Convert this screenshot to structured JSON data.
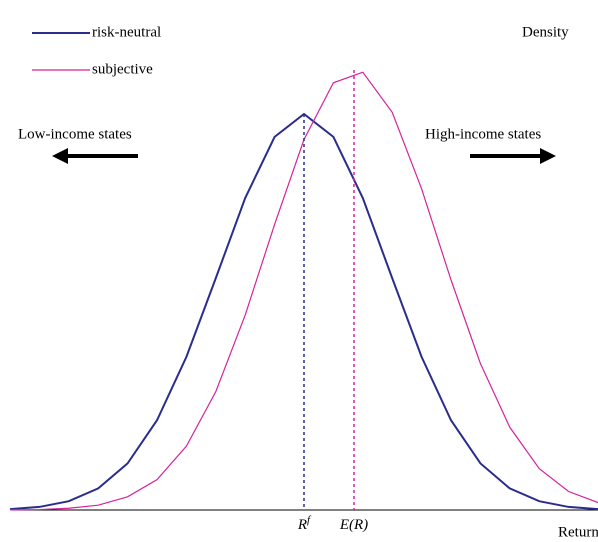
{
  "chart_data": {
    "type": "line",
    "y_label": "Density",
    "x_label": "Return",
    "annotations": [
      "Low-income states",
      "High-income states"
    ],
    "x": [
      0,
      5,
      10,
      15,
      20,
      25,
      30,
      35,
      40,
      45,
      50,
      55,
      60,
      65,
      70,
      75,
      80,
      85,
      90,
      95,
      100
    ],
    "series": [
      {
        "name": "risk-neutral",
        "color": "#2b2d8c",
        "values": [
          0.002,
          0.007,
          0.02,
          0.049,
          0.106,
          0.204,
          0.348,
          0.527,
          0.709,
          0.848,
          0.9,
          0.848,
          0.709,
          0.527,
          0.348,
          0.204,
          0.106,
          0.049,
          0.02,
          0.007,
          0.002
        ]
      },
      {
        "name": "subjective",
        "color": "#d4239c",
        "values": [
          0.0003,
          0.001,
          0.004,
          0.011,
          0.03,
          0.069,
          0.145,
          0.269,
          0.443,
          0.649,
          0.842,
          0.971,
          0.995,
          0.904,
          0.73,
          0.523,
          0.333,
          0.188,
          0.094,
          0.042,
          0.017
        ]
      }
    ],
    "markers": [
      {
        "label": "R",
        "sup": "f",
        "x": 50,
        "y": 0.9,
        "color": "#2b2d8c"
      },
      {
        "label": "E(R)",
        "x": 58.5,
        "y": 1.0,
        "color": "#d4239c"
      }
    ],
    "xlim": [
      0,
      100
    ],
    "ylim": [
      0,
      1
    ]
  }
}
